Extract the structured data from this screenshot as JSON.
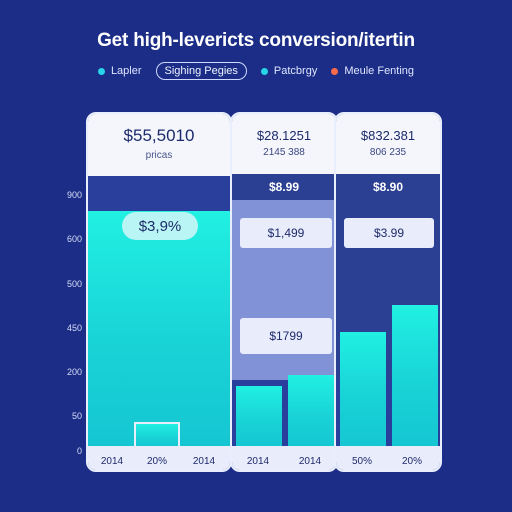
{
  "title": "Get high-levericts conversion/itertin",
  "legend": {
    "items": [
      {
        "label": "Lapler",
        "color": "#27d4e8"
      },
      {
        "label": "Sighing Pegies",
        "color": null
      },
      {
        "label": "Patcbrgy",
        "color": "#27d4e8"
      },
      {
        "label": "Meule Fenting",
        "color": "#ff6b4a"
      }
    ]
  },
  "panels": [
    {
      "main": "$55,5010",
      "sub": "pricas"
    },
    {
      "main": "$28.1251",
      "sub": "2145 388",
      "band": "$8.99"
    },
    {
      "main": "$832.381",
      "sub": "806 235",
      "band": "$8.90"
    }
  ],
  "badge": "$3,9%",
  "value_labels": [
    "$1,499",
    "$1799",
    "$3.99"
  ],
  "chart_data": {
    "type": "bar",
    "title": "Get high-levericts conversion/itertin",
    "xlabel": "",
    "ylabel": "",
    "ylim": [
      0,
      900
    ],
    "ytick_labels": [
      "0",
      "50",
      "200",
      "450",
      "500",
      "600",
      "900"
    ],
    "categories": [
      "2014",
      "20%",
      "2014",
      "2014",
      "2014",
      "50%",
      "20%"
    ],
    "values": [
      780,
      85,
      0,
      205,
      240,
      380,
      470
    ]
  },
  "colors": {
    "background": "#1b2d86",
    "bar": "#1fe2db",
    "card": "#f4f6fc"
  }
}
